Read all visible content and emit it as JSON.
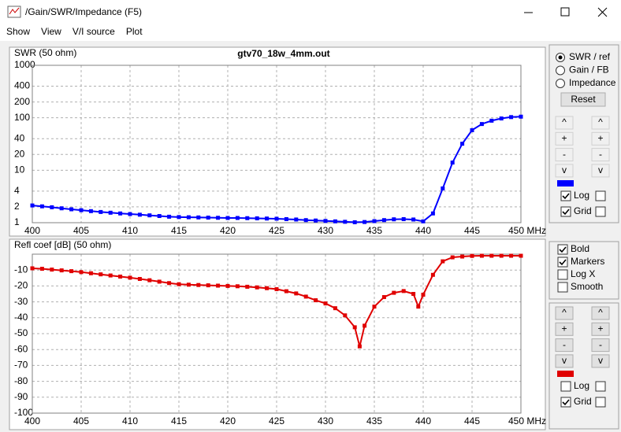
{
  "window": {
    "title": "/Gain/SWR/Impedance (F5)"
  },
  "menu": [
    {
      "label": "Show",
      "enabled": true
    },
    {
      "label": "View",
      "enabled": true
    },
    {
      "label": "V/I source",
      "enabled": false
    },
    {
      "label": "Plot",
      "enabled": true
    }
  ],
  "chart_data": [
    {
      "type": "line",
      "title": "gtv70_18w_4mm.out",
      "y_label": "SWR (50 ohm)",
      "yscale": "log",
      "grid": true,
      "color": "#0000ff",
      "x": [
        400,
        401,
        402,
        403,
        404,
        405,
        406,
        407,
        408,
        409,
        410,
        411,
        412,
        413,
        414,
        415,
        416,
        417,
        418,
        419,
        420,
        421,
        422,
        423,
        424,
        425,
        426,
        427,
        428,
        429,
        430,
        431,
        432,
        433,
        434,
        435,
        436,
        437,
        438,
        439,
        440,
        441,
        442,
        443,
        444,
        445,
        446,
        447,
        448,
        449,
        450
      ],
      "values": [
        2.13,
        2.05,
        1.97,
        1.88,
        1.8,
        1.73,
        1.66,
        1.6,
        1.55,
        1.5,
        1.46,
        1.42,
        1.38,
        1.34,
        1.3,
        1.28,
        1.27,
        1.26,
        1.25,
        1.24,
        1.23,
        1.23,
        1.22,
        1.21,
        1.2,
        1.19,
        1.17,
        1.15,
        1.12,
        1.1,
        1.08,
        1.06,
        1.04,
        1.02,
        1.03,
        1.07,
        1.12,
        1.16,
        1.17,
        1.15,
        1.06,
        1.5,
        4.5,
        14,
        32,
        58,
        76,
        88,
        97,
        103,
        105
      ],
      "xlim": [
        400,
        450
      ],
      "xticks": [
        400,
        405,
        410,
        415,
        420,
        425,
        430,
        435,
        440,
        445,
        {
          "value": 450,
          "label": "450 MHz"
        }
      ],
      "ylim": [
        1,
        1000
      ],
      "yticks": [
        1,
        2,
        4,
        10,
        20,
        40,
        100,
        200,
        400,
        1000
      ]
    },
    {
      "type": "line",
      "y_label": "Refl coef [dB] (50 ohm)",
      "yscale": "linear",
      "grid": true,
      "color": "#e00000",
      "x": [
        400,
        401,
        402,
        403,
        404,
        405,
        406,
        407,
        408,
        409,
        410,
        411,
        412,
        413,
        414,
        415,
        416,
        417,
        418,
        419,
        420,
        421,
        422,
        423,
        424,
        425,
        426,
        427,
        428,
        429,
        430,
        431,
        432,
        433,
        433.5,
        434,
        435,
        436,
        437,
        438,
        439,
        439.5,
        440,
        441,
        442,
        443,
        444,
        445,
        446,
        447,
        448,
        449,
        450
      ],
      "values": [
        -8.9,
        -9.2,
        -9.7,
        -10.2,
        -10.7,
        -11.3,
        -12,
        -12.7,
        -13.4,
        -14.1,
        -14.8,
        -15.6,
        -16.4,
        -17.3,
        -18.2,
        -18.9,
        -19.2,
        -19.4,
        -19.6,
        -19.8,
        -20,
        -20.2,
        -20.5,
        -20.9,
        -21.4,
        -22,
        -23.3,
        -24.7,
        -26.7,
        -29,
        -31,
        -34,
        -38.5,
        -46,
        -58,
        -45,
        -33,
        -27,
        -24.3,
        -23.2,
        -25,
        -33,
        -25.5,
        -13,
        -4.5,
        -2,
        -1.5,
        -1.1,
        -1,
        -1,
        -1,
        -1,
        -1
      ],
      "xlim": [
        400,
        450
      ],
      "xticks": [
        400,
        405,
        410,
        415,
        420,
        425,
        430,
        435,
        440,
        445,
        {
          "value": 450,
          "label": "450 MHz"
        }
      ],
      "ylim": [
        -100,
        0
      ],
      "yticks": [
        -10,
        -20,
        -30,
        -40,
        -50,
        -60,
        -70,
        -80,
        -90,
        -100
      ]
    }
  ],
  "controls": {
    "plot_mode": [
      {
        "label": "SWR / ref",
        "checked": true
      },
      {
        "label": "Gain / FB",
        "checked": false
      },
      {
        "label": "Impedance",
        "checked": false
      }
    ],
    "reset": "Reset",
    "buttons": [
      "^",
      "+",
      "-",
      "v"
    ],
    "top": {
      "buttons_enabled": false,
      "log": {
        "label": "Log",
        "checked": true
      },
      "grid": {
        "label": "Grid",
        "checked": true
      }
    },
    "options": [
      {
        "label": "Bold",
        "checked": true
      },
      {
        "label": "Markers",
        "checked": true
      },
      {
        "label": "Log X",
        "checked": false
      },
      {
        "label": "Smooth",
        "checked": false
      }
    ],
    "bottom": {
      "buttons_enabled": true,
      "log": {
        "label": "Log",
        "checked": false
      },
      "grid": {
        "label": "Grid",
        "checked": true
      }
    }
  }
}
